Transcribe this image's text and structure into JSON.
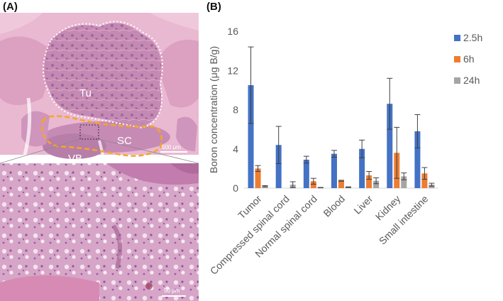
{
  "panels": {
    "a_label": "(A)",
    "b_label": "(B)"
  },
  "histology": {
    "labels": {
      "tumor": "Tu",
      "spinal_cord": "SC",
      "vertebral_body": "VB"
    },
    "scale_bars": {
      "top": "500 μm",
      "bottom": "50 μm"
    },
    "colors": {
      "tumor_outline": "#ffffff",
      "spinal_cord_outline": "#f5a623",
      "tissue": "#c98fb6",
      "background_tissue": "#e8b7cf"
    }
  },
  "chart_data": {
    "type": "bar",
    "title": "",
    "xlabel": "",
    "ylabel": "Boron concentration (μg B/g)",
    "ylim": [
      0,
      16
    ],
    "yticks": [
      0,
      4,
      8,
      12,
      16
    ],
    "grid": false,
    "legend_position": "top-right",
    "categories": [
      "Tumor",
      "Compressed spinal cord",
      "Normal spinal cord",
      "Blood",
      "Liver",
      "Kidney",
      "Small intestine"
    ],
    "series": [
      {
        "name": "2.5h",
        "color": "#4472c4",
        "values": [
          10.5,
          4.4,
          2.9,
          3.5,
          4.0,
          8.6,
          5.8
        ],
        "errors": [
          3.9,
          1.9,
          0.35,
          0.35,
          0.9,
          2.6,
          1.7
        ]
      },
      {
        "name": "6h",
        "color": "#ed7d31",
        "values": [
          2.0,
          0,
          0.7,
          0.75,
          1.3,
          3.6,
          1.5
        ],
        "errors": [
          0.3,
          0,
          0.3,
          0.05,
          0.4,
          2.6,
          0.6
        ]
      },
      {
        "name": "24h",
        "color": "#a5a5a5",
        "values": [
          0.2,
          0.35,
          0.05,
          0.1,
          0.75,
          1.2,
          0.35
        ],
        "errors": [
          0.05,
          0.3,
          0.02,
          0.03,
          0.3,
          0.35,
          0.15
        ]
      }
    ]
  }
}
